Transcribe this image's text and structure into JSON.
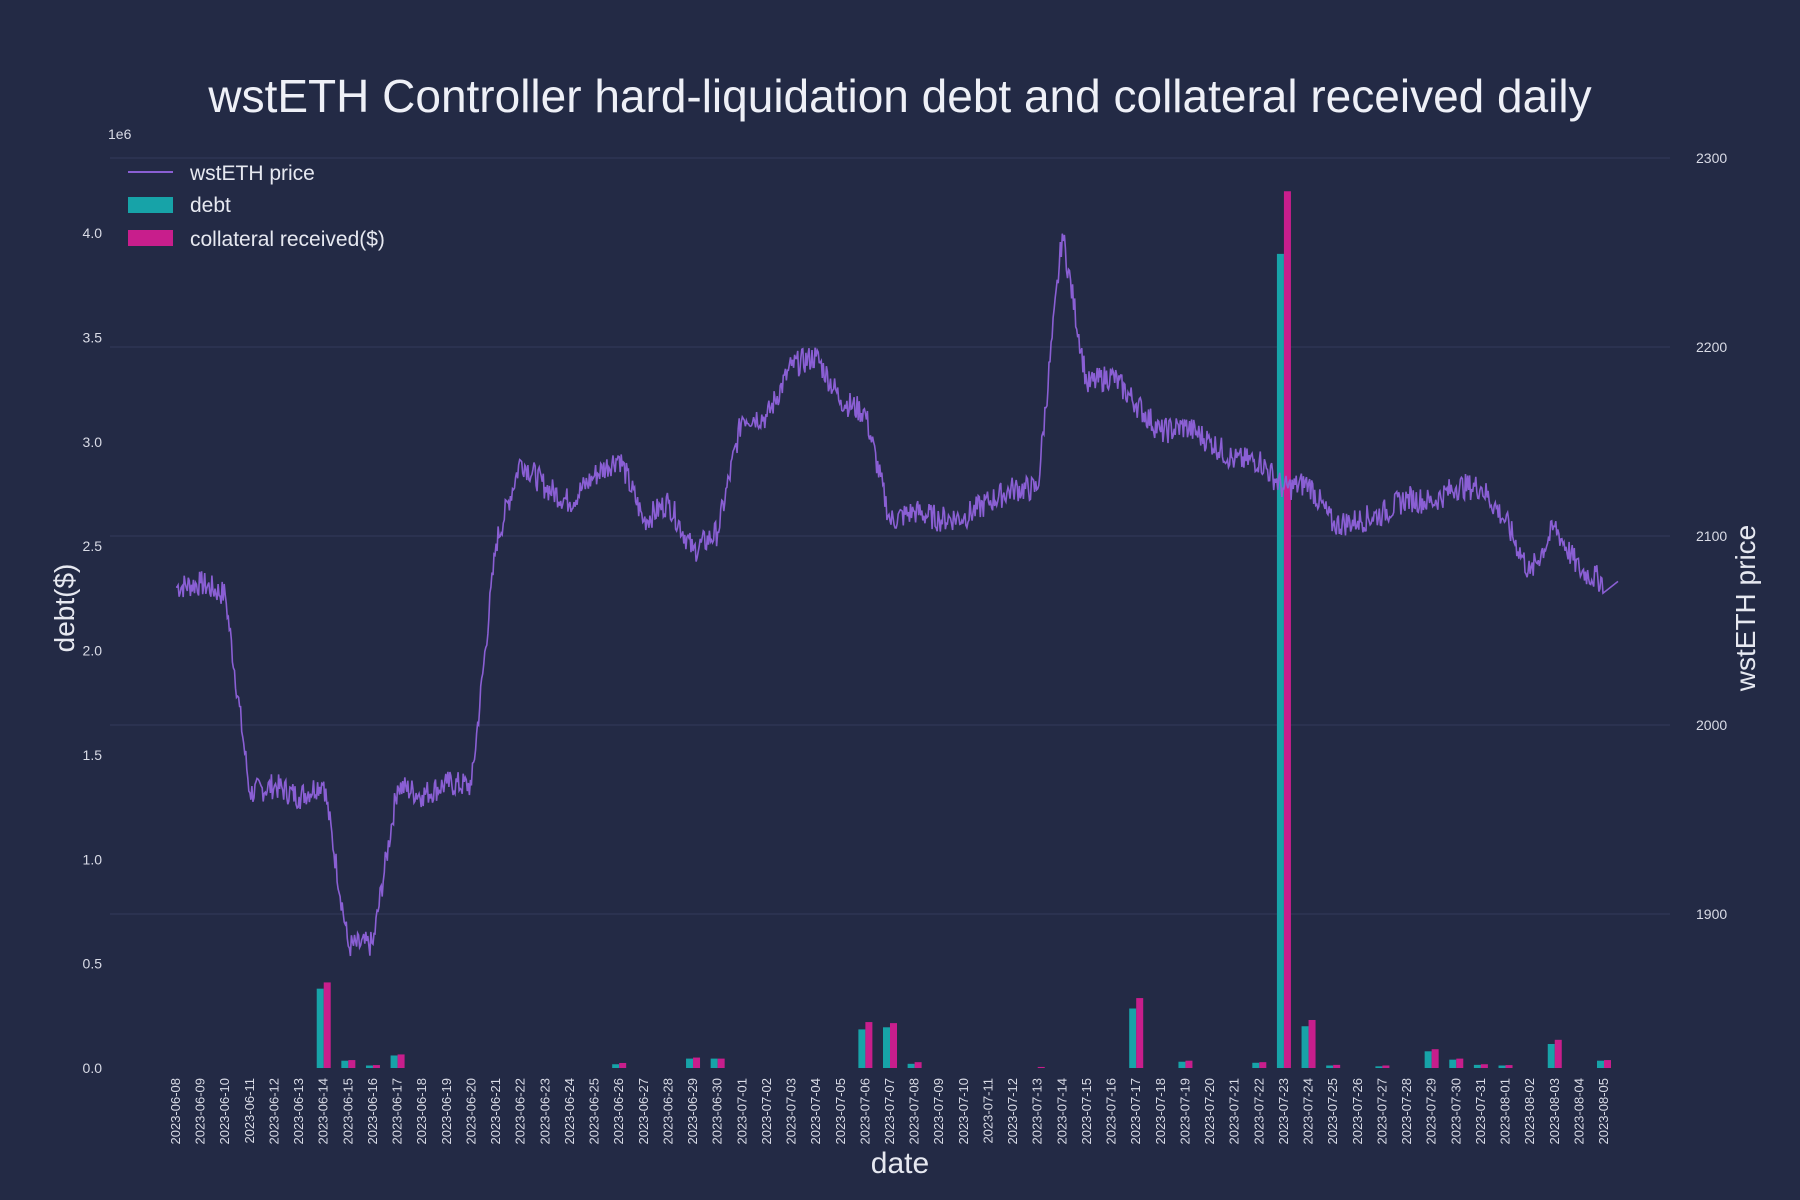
{
  "chart_data": {
    "type": "bar",
    "title": "wstETH Controller hard-liquidation debt and collateral received daily",
    "xlabel": "date",
    "ylabel": "debt($)",
    "y2label": "wstETH price",
    "y_exponent_label": "1e6",
    "ylim": [
      0,
      4.3
    ],
    "y_ticks": [
      "0.0",
      "0.5",
      "1.0",
      "1.5",
      "2.0",
      "2.5",
      "3.0",
      "3.5",
      "4.0"
    ],
    "y2lim": [
      1818,
      2300
    ],
    "y2_ticks": [
      "1900",
      "2000",
      "2100",
      "2200",
      "2300"
    ],
    "grid": true,
    "legend_position": "top-left",
    "legend": [
      "wstETH price",
      "debt",
      "collateral received($)"
    ],
    "colors": {
      "price": "#8a5fd4",
      "debt": "#17a3a8",
      "collateral": "#c81e8c",
      "background": "#232a45"
    },
    "categories": [
      "2023-06-08",
      "2023-06-09",
      "2023-06-10",
      "2023-06-11",
      "2023-06-12",
      "2023-06-13",
      "2023-06-14",
      "2023-06-15",
      "2023-06-16",
      "2023-06-17",
      "2023-06-18",
      "2023-06-19",
      "2023-06-20",
      "2023-06-21",
      "2023-06-22",
      "2023-06-23",
      "2023-06-24",
      "2023-06-25",
      "2023-06-26",
      "2023-06-27",
      "2023-06-28",
      "2023-06-29",
      "2023-06-30",
      "2023-07-01",
      "2023-07-02",
      "2023-07-03",
      "2023-07-04",
      "2023-07-05",
      "2023-07-06",
      "2023-07-07",
      "2023-07-08",
      "2023-07-09",
      "2023-07-10",
      "2023-07-11",
      "2023-07-12",
      "2023-07-13",
      "2023-07-14",
      "2023-07-15",
      "2023-07-16",
      "2023-07-17",
      "2023-07-18",
      "2023-07-19",
      "2023-07-20",
      "2023-07-21",
      "2023-07-22",
      "2023-07-23",
      "2023-07-24",
      "2023-07-25",
      "2023-07-26",
      "2023-07-27",
      "2023-07-28",
      "2023-07-29",
      "2023-07-30",
      "2023-07-31",
      "2023-08-01",
      "2023-08-02",
      "2023-08-03",
      "2023-08-04",
      "2023-08-05"
    ],
    "series": [
      {
        "name": "debt",
        "values": [
          0,
          0,
          0,
          0,
          0,
          0,
          0.38,
          0.035,
          0.012,
          0.06,
          0,
          0,
          0,
          0,
          0,
          0,
          0,
          0,
          0.018,
          0,
          0,
          0.045,
          0.045,
          0,
          0,
          0,
          0,
          0,
          0.185,
          0.195,
          0.02,
          0,
          0,
          0,
          0,
          0,
          0,
          0,
          0,
          0.285,
          0,
          0.03,
          0,
          0,
          0.025,
          3.9,
          0.2,
          0.012,
          0,
          0.008,
          0,
          0.08,
          0.04,
          0.015,
          0.012,
          0,
          0.115,
          0,
          0.035
        ]
      },
      {
        "name": "collateral received($)",
        "values": [
          0,
          0,
          0,
          0,
          0,
          0,
          0.41,
          0.038,
          0.014,
          0.065,
          0,
          0,
          0,
          0,
          0,
          0,
          0,
          0,
          0.024,
          0,
          0,
          0.05,
          0.045,
          0,
          0,
          0,
          0,
          0,
          0.22,
          0.215,
          0.028,
          0,
          0,
          0,
          0,
          0.005,
          0,
          0,
          0,
          0.335,
          0,
          0.035,
          0,
          0,
          0.028,
          4.2,
          0.23,
          0.015,
          0,
          0.012,
          0,
          0.09,
          0.045,
          0.018,
          0.014,
          0,
          0.135,
          0,
          0.038
        ]
      },
      {
        "name": "wstETH price",
        "values": [
          2073,
          2075,
          2069,
          1964,
          1968,
          1962,
          1970,
          1883,
          1884,
          1968,
          1963,
          1969,
          1968,
          2096,
          2140,
          2126,
          2118,
          2132,
          2142,
          2108,
          2118,
          2092,
          2102,
          2163,
          2163,
          2190,
          2195,
          2172,
          2165,
          2108,
          2113,
          2109,
          2110,
          2118,
          2125,
          2125,
          2260,
          2180,
          2185,
          2170,
          2155,
          2158,
          2150,
          2140,
          2140,
          2125,
          2128,
          2106,
          2108,
          2112,
          2120,
          2118,
          2126,
          2126,
          2108,
          2080,
          2105,
          2082,
          2076
        ]
      }
    ]
  }
}
